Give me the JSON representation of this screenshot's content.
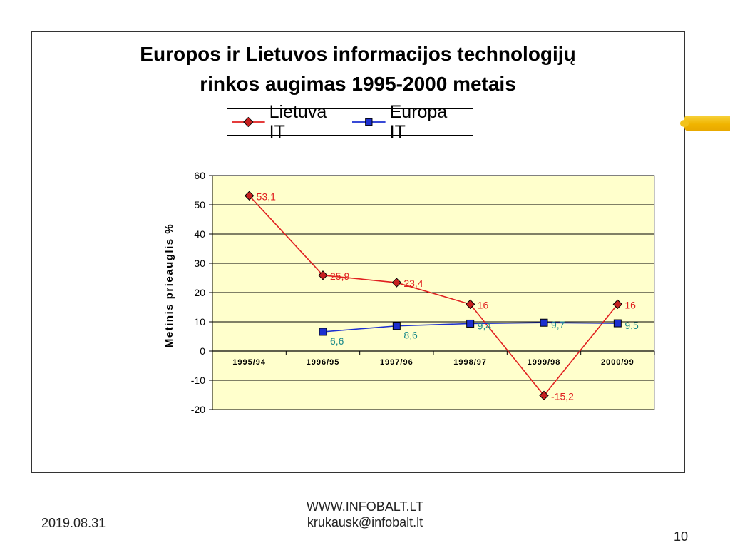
{
  "chart_data": {
    "type": "line",
    "title_line1": "Europos ir Lietuvos informacijos technologijų",
    "title_line2": "rinkos augimas 1995-2000 metais",
    "ylabel": "Metinis prieauglis %",
    "xlabel": "",
    "categories": [
      "1995/94",
      "1996/95",
      "1997/96",
      "1998/97",
      "1999/98",
      "2000/99"
    ],
    "ylim": [
      -20,
      60
    ],
    "yticks": [
      60,
      50,
      40,
      30,
      20,
      10,
      0,
      -10,
      -20
    ],
    "grid": true,
    "plot_background": "#ffffcc",
    "legend_position": "top",
    "series": [
      {
        "name": "Lietuva IT",
        "color": "#e02020",
        "marker": "diamond",
        "label_color": "#e02020",
        "values": [
          53.1,
          25.9,
          23.4,
          16,
          -15.2,
          16
        ],
        "labels": [
          "53,1",
          "25,9",
          "23,4",
          "16",
          "-15,2",
          "16"
        ]
      },
      {
        "name": "Europa IT",
        "color": "#1c2fd0",
        "marker": "square",
        "label_color": "#1a8a8a",
        "values": [
          null,
          6.6,
          8.6,
          9.4,
          9.7,
          9.5
        ],
        "labels": [
          null,
          "6,6",
          "8,6",
          "9,4",
          "9,7",
          "9,5"
        ]
      }
    ]
  },
  "footer": {
    "date": "2019.08.31",
    "site": "WWW.INFOBALT.LT",
    "email": "krukausk@infobalt.lt",
    "page": "10"
  }
}
